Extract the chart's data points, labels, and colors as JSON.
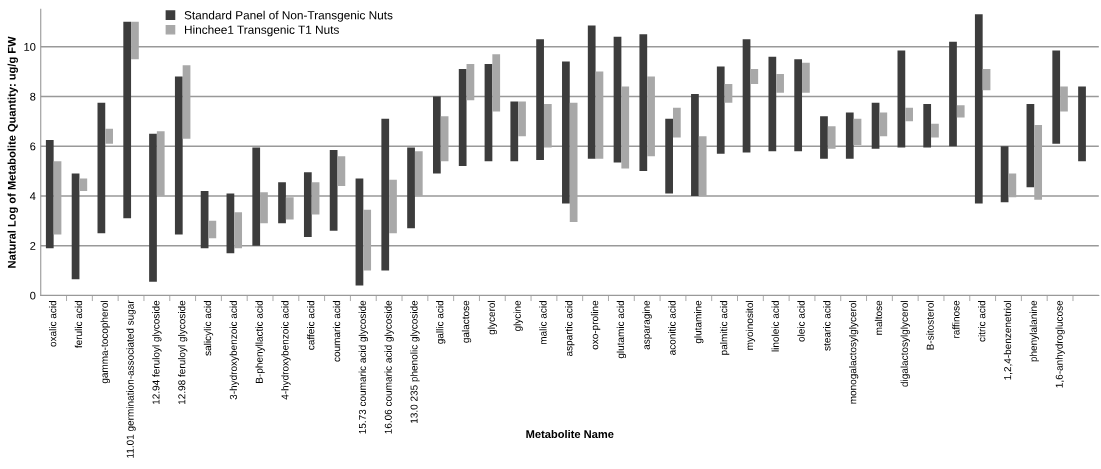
{
  "chart_data": {
    "type": "bar",
    "xlabel": "Metabolite Name",
    "ylabel": "Natural Log of Metabolite Quantity: ug/g FW",
    "categories": [
      "oxalic acid",
      "ferulic acid",
      "gamma-tocopherol",
      "11.01 germination-associated sugar",
      "12.94 feruloyl glycoside",
      "12.98 feruloyl glycoside",
      "salicylic acid",
      "3-hydroxybenzoic acid",
      "B-phenyllactic acid",
      "4-hydroxybenzoic acid",
      "caffeic acid",
      "coumaric acid",
      "15.73 coumaric acid glycoside",
      "16.06 coumaric acid glycoside",
      "13.0 235 phenolic glycoside",
      "gallic acid",
      "galactose",
      "glycerol",
      "glycine",
      "malic acid",
      "aspartic acid",
      "oxo-proline",
      "glutamic acid",
      "asparagine",
      "aconitic acid",
      "glutamine",
      "palmitic acid",
      "myoinositol",
      "linoleic acid",
      "oleic acid",
      "stearic acid",
      "monogalactosylglycerol",
      "maltose",
      "digalactosylglycerol",
      "B-sitosterol",
      "raffinose",
      "citric acid",
      "1,2,4-benzenetriol",
      "phenylalanine",
      "1,6-anhydroglucose",
      null
    ],
    "series": [
      {
        "name": "Standard Panel of Non-Transgenic Nuts",
        "color": "#3c3c3c",
        "base": [
          1.9,
          0.65,
          2.5,
          3.1,
          0.55,
          2.45,
          1.9,
          1.7,
          2.0,
          2.9,
          2.35,
          2.6,
          0.4,
          1.0,
          2.7,
          4.9,
          5.2,
          5.4,
          5.4,
          5.45,
          3.7,
          5.5,
          5.35,
          5.0,
          4.1,
          4.0,
          5.7,
          5.75,
          5.8,
          5.8,
          5.5,
          5.5,
          5.9,
          5.95,
          5.95,
          6.0,
          3.7,
          3.75,
          4.35,
          6.1,
          5.4
        ],
        "values": [
          4.35,
          4.25,
          5.25,
          7.9,
          5.95,
          6.35,
          2.3,
          2.4,
          3.95,
          1.65,
          2.6,
          3.25,
          4.3,
          6.1,
          3.25,
          3.1,
          3.9,
          3.9,
          2.4,
          4.85,
          5.7,
          5.35,
          5.05,
          5.5,
          3.0,
          4.1,
          3.5,
          4.55,
          3.8,
          3.7,
          1.7,
          1.85,
          1.85,
          3.9,
          1.75,
          4.2,
          7.6,
          2.25,
          3.35,
          3.75,
          3.0
        ]
      },
      {
        "name": "Hinchee1 Transgenic T1 Nuts",
        "color": "#a8a8a8",
        "base": [
          2.45,
          4.2,
          6.1,
          9.5,
          4.0,
          6.3,
          2.3,
          1.9,
          2.9,
          3.05,
          3.25,
          4.4,
          1.0,
          2.5,
          4.0,
          5.4,
          7.85,
          7.4,
          6.4,
          5.95,
          2.95,
          5.5,
          5.1,
          5.6,
          6.35,
          4.0,
          7.75,
          8.5,
          8.15,
          8.15,
          5.9,
          6.05,
          6.4,
          7.0,
          6.35,
          7.15,
          8.25,
          3.95,
          3.85,
          7.4,
          null
        ],
        "values": [
          2.95,
          0.5,
          0.6,
          1.5,
          2.6,
          2.95,
          0.7,
          1.45,
          1.25,
          0.9,
          1.3,
          1.2,
          2.45,
          2.15,
          1.8,
          1.8,
          1.45,
          2.3,
          1.4,
          1.75,
          4.8,
          3.5,
          3.3,
          3.2,
          1.2,
          2.4,
          0.75,
          0.6,
          0.75,
          1.2,
          0.9,
          1.05,
          0.95,
          0.55,
          0.55,
          0.5,
          0.85,
          0.95,
          3.0,
          1.0,
          null
        ]
      }
    ],
    "ylim": [
      0,
      11.5
    ],
    "yticks": [
      0,
      2,
      4,
      6,
      8,
      10
    ],
    "grid": "y",
    "legend": "top left"
  }
}
